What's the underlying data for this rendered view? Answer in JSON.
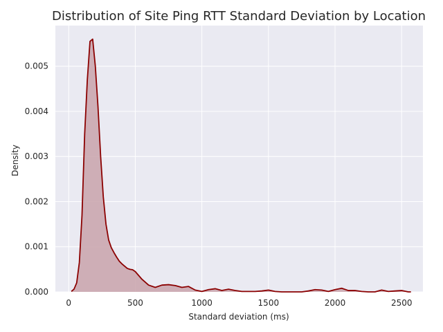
{
  "chart_data": {
    "type": "area",
    "title": "Distribution of Site Ping RTT Standard Deviation by Location",
    "xlabel": "Standard deviation (ms)",
    "ylabel": "Density",
    "xlim": [
      -100,
      2660
    ],
    "ylim": [
      0,
      0.0059
    ],
    "xticks": [
      0,
      500,
      1000,
      1500,
      2000,
      2500
    ],
    "yticks": [
      0.0,
      0.001,
      0.002,
      0.003,
      0.004,
      0.005
    ],
    "xtick_labels": [
      "0",
      "500",
      "1000",
      "1500",
      "2000",
      "2500"
    ],
    "ytick_labels": [
      "0.000",
      "0.001",
      "0.002",
      "0.003",
      "0.004",
      "0.005"
    ],
    "grid": true,
    "colors": {
      "line": "#8b0000",
      "fill": "#c9a3ab",
      "background": "#eaeaf2",
      "grid": "#ffffff"
    },
    "series": [
      {
        "x": [
          20,
          40,
          60,
          80,
          100,
          120,
          140,
          160,
          180,
          200,
          220,
          240,
          260,
          280,
          300,
          320,
          340,
          360,
          380,
          400,
          420,
          440,
          460,
          480,
          500,
          550,
          600,
          650,
          700,
          750,
          800,
          850,
          900,
          950,
          1000,
          1050,
          1100,
          1150,
          1200,
          1250,
          1300,
          1350,
          1400,
          1450,
          1500,
          1550,
          1600,
          1650,
          1700,
          1750,
          1800,
          1850,
          1900,
          1950,
          2000,
          2050,
          2100,
          2150,
          2200,
          2250,
          2300,
          2350,
          2400,
          2450,
          2500,
          2550,
          2570
        ],
        "values": [
          1e-05,
          6e-05,
          0.0002,
          0.00065,
          0.0017,
          0.0035,
          0.0047,
          0.00555,
          0.0056,
          0.005,
          0.0041,
          0.003,
          0.0021,
          0.0015,
          0.00115,
          0.00098,
          0.00087,
          0.00077,
          0.00068,
          0.00062,
          0.00057,
          0.00052,
          0.0005,
          0.00049,
          0.00045,
          0.00028,
          0.00015,
          0.0001,
          0.00015,
          0.00016,
          0.00014,
          0.0001,
          0.00012,
          4e-05,
          1e-05,
          5e-05,
          7e-05,
          3e-05,
          6e-05,
          3e-05,
          1e-05,
          1e-05,
          1e-05,
          2e-05,
          4e-05,
          1e-05,
          0.0,
          0.0,
          0.0,
          0.0,
          2e-05,
          5e-05,
          4e-05,
          1e-05,
          5e-05,
          8e-05,
          3e-05,
          3e-05,
          1e-05,
          0.0,
          0.0,
          4e-05,
          1e-05,
          2e-05,
          3e-05,
          0.0,
          0.0
        ]
      }
    ]
  }
}
